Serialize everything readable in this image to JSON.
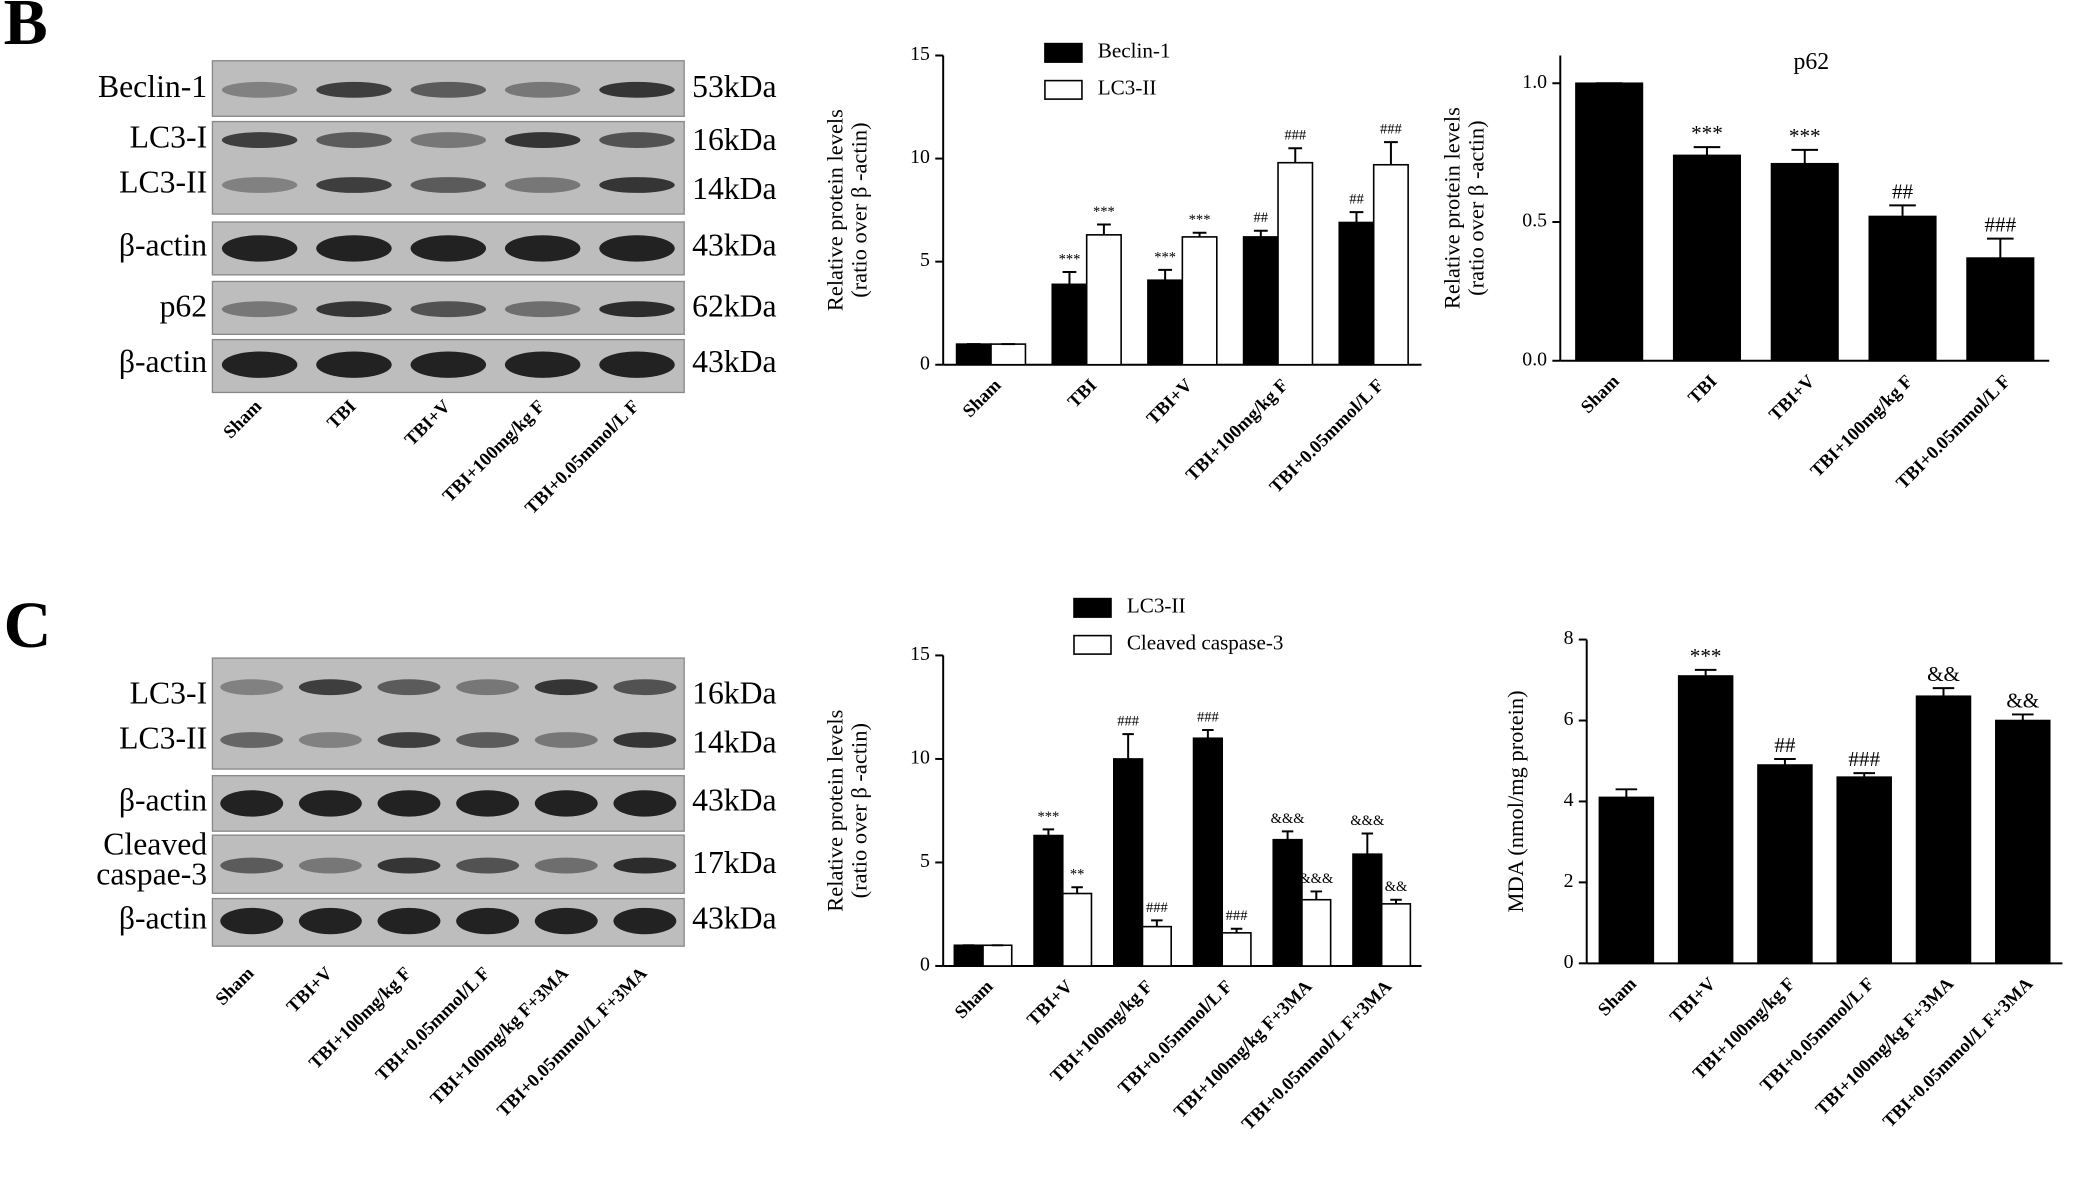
{
  "panel_labels": [
    "B",
    "C"
  ],
  "blots": [
    {
      "lanes": [
        "Sham",
        "TBI",
        "TBI+V",
        "TBI+100mg/kg F",
        "TBI+0.05mmol/L F"
      ],
      "rows": [
        {
          "labels": [
            "Beclin-1"
          ],
          "kda": [
            "53kDa"
          ]
        },
        {
          "labels": [
            "LC3-I",
            "LC3-II"
          ],
          "kda": [
            "16kDa",
            "14kDa"
          ]
        },
        {
          "labels": [
            "β-actin"
          ],
          "kda": [
            "43kDa"
          ]
        },
        {
          "labels": [
            "p62"
          ],
          "kda": [
            "62kDa"
          ]
        },
        {
          "labels": [
            "β-actin"
          ],
          "kda": [
            "43kDa"
          ]
        }
      ]
    },
    {
      "lanes": [
        "Sham",
        "TBI+V",
        "TBI+100mg/kg F",
        "TBI+0.05mmol/L F",
        "TBI+100mg/kg F+3MA",
        "TBI+0.05mmol/L F+3MA"
      ],
      "rows": [
        {
          "labels": [
            "LC3-I",
            "LC3-II"
          ],
          "kda": [
            "16kDa",
            "14kDa"
          ]
        },
        {
          "labels": [
            "β-actin"
          ],
          "kda": [
            "43kDa"
          ]
        },
        {
          "labels": [
            "Cleaved",
            "caspae-3"
          ],
          "kda": [
            "17kDa"
          ]
        },
        {
          "labels": [
            "β-actin"
          ],
          "kda": [
            "43kDa"
          ]
        }
      ]
    }
  ],
  "chart_data": [
    {
      "type": "bar",
      "y_label": [
        "Relative protein levels",
        "(ratio over β -actin)"
      ],
      "categories": [
        "Sham",
        "TBI",
        "TBI+V",
        "TBI+100mg/kg F",
        "TBI+0.05mmol/L F"
      ],
      "ylim": [
        0,
        15
      ],
      "yticks": [
        0,
        5,
        10,
        15
      ],
      "series": [
        {
          "name": "Beclin-1",
          "color": "#000000",
          "values": [
            1,
            3.9,
            4.1,
            6.2,
            6.9
          ],
          "errors": [
            0,
            0.6,
            0.5,
            0.3,
            0.5
          ],
          "significance": [
            null,
            "***",
            "***",
            "##",
            "##"
          ]
        },
        {
          "name": "LC3-II",
          "color": "#ffffff",
          "values": [
            1,
            6.3,
            6.2,
            9.8,
            9.7
          ],
          "errors": [
            0,
            0.5,
            0.2,
            0.7,
            1.1
          ],
          "significance": [
            null,
            "***",
            "***",
            "###",
            "###"
          ]
        }
      ]
    },
    {
      "type": "bar",
      "title": "p62",
      "y_label": [
        "Relative protein levels",
        "(ratio over β -actin)"
      ],
      "categories": [
        "Sham",
        "TBI",
        "TBI+V",
        "TBI+100mg/kg F",
        "TBI+0.05mmol/L F"
      ],
      "ylim": [
        0,
        1.1
      ],
      "yticks": [
        {
          "value": 0,
          "label": "0.0"
        },
        {
          "value": 0.5,
          "label": "0.5"
        },
        {
          "value": 1,
          "label": "1.0"
        }
      ],
      "color": "#000000",
      "values": [
        1,
        0.74,
        0.71,
        0.52,
        0.37
      ],
      "errors": [
        0,
        0.03,
        0.05,
        0.04,
        0.07
      ],
      "significance": [
        null,
        "***",
        "***",
        "##",
        "###"
      ]
    },
    {
      "type": "bar",
      "y_label": [
        "Relative protein levels",
        "(ratio over β -actin)"
      ],
      "categories": [
        "Sham",
        "TBI+V",
        "TBI+100mg/kg F",
        "TBI+0.05mmol/L F",
        "TBI+100mg/kg F+3MA",
        "TBI+0.05mmol/L F+3MA"
      ],
      "ylim": [
        0,
        15
      ],
      "yticks": [
        0,
        5,
        10,
        15
      ],
      "series": [
        {
          "name": "LC3-II",
          "color": "#000000",
          "values": [
            1,
            6.3,
            10,
            11,
            6.1,
            5.4
          ],
          "errors": [
            0,
            0.3,
            1.2,
            0.4,
            0.4,
            1
          ],
          "significance": [
            null,
            "***",
            "###",
            "###",
            "&&&",
            "&&&"
          ]
        },
        {
          "name": "Cleaved caspase-3",
          "color": "#ffffff",
          "values": [
            1,
            3.5,
            1.9,
            1.6,
            3.2,
            3.0
          ],
          "errors": [
            0,
            0.3,
            0.3,
            0.2,
            0.4,
            0.2
          ],
          "significance": [
            null,
            "**",
            "###",
            "###",
            "&&&",
            "&&"
          ]
        }
      ]
    },
    {
      "type": "bar",
      "y_label": [
        "MDA (nmol/mg protein)"
      ],
      "categories": [
        "Sham",
        "TBI+V",
        "TBI+100mg/kg F",
        "TBI+0.05mmol/L F",
        "TBI+100mg/kg F+3MA",
        "TBI+0.05mmol/L F+3MA"
      ],
      "ylim": [
        0,
        8
      ],
      "yticks": [
        0,
        2,
        4,
        6,
        8
      ],
      "color": "#000000",
      "values": [
        4.1,
        7.1,
        4.9,
        4.6,
        6.6,
        6.0
      ],
      "errors": [
        0.2,
        0.15,
        0.15,
        0.1,
        0.2,
        0.15
      ],
      "significance": [
        null,
        "***",
        "##",
        "###",
        "&&",
        "&&"
      ]
    }
  ]
}
